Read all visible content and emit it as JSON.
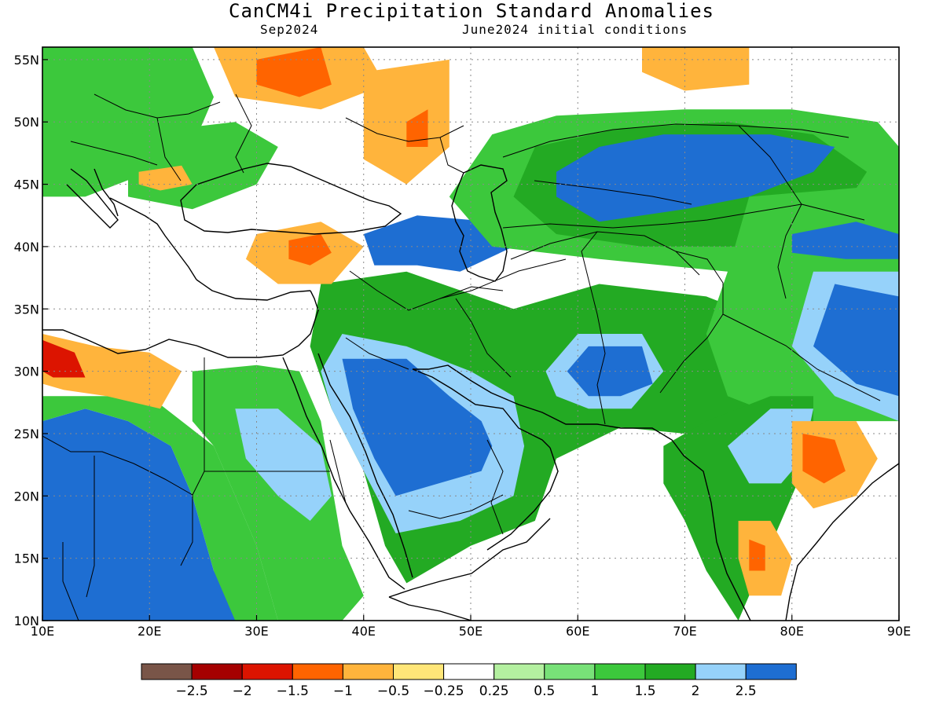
{
  "title": "CanCM4i Precipitation Standard Anomalies",
  "valid_month": "Sep2024",
  "init": "June2024 initial conditions",
  "map": {
    "lon_range": [
      10,
      90
    ],
    "lat_range": [
      10,
      56
    ],
    "lon_labels": [
      "10E",
      "20E",
      "30E",
      "40E",
      "50E",
      "60E",
      "70E",
      "80E",
      "90E"
    ],
    "lat_labels": [
      "10N",
      "15N",
      "20N",
      "25N",
      "30N",
      "35N",
      "40N",
      "45N",
      "50N",
      "55N"
    ]
  },
  "colorbar": {
    "colors": [
      "#795548",
      "#a50000",
      "#dc1400",
      "#ff6400",
      "#ffb43c",
      "#ffe678",
      "#ffffff",
      "#b4f0a0",
      "#78e178",
      "#3cc83c",
      "#23aa23",
      "#96d2fa",
      "#1e6ed2"
    ],
    "labels": [
      "−2.5",
      "−2",
      "−1.5",
      "−1",
      "−0.5",
      "−0.25",
      "0.25",
      "0.5",
      "1",
      "1.5",
      "2",
      "2.5"
    ]
  },
  "regions": [
    {
      "name": "east-africa-wet",
      "level": 12,
      "pts": [
        [
          10,
          26
        ],
        [
          14,
          27
        ],
        [
          18,
          26
        ],
        [
          22,
          24
        ],
        [
          24,
          20
        ],
        [
          26,
          14
        ],
        [
          28,
          11
        ],
        [
          28,
          10
        ],
        [
          10,
          10
        ],
        [
          10,
          13
        ]
      ]
    },
    {
      "name": "east-africa-moist",
      "level": 9,
      "pts": [
        [
          10,
          28
        ],
        [
          20,
          28
        ],
        [
          26,
          24
        ],
        [
          28,
          20
        ],
        [
          30,
          16
        ],
        [
          32,
          10
        ],
        [
          28,
          10
        ],
        [
          26,
          14
        ],
        [
          24,
          20
        ],
        [
          22,
          24
        ],
        [
          18,
          26
        ],
        [
          14,
          27
        ],
        [
          10,
          26
        ]
      ]
    },
    {
      "name": "sahara-green",
      "level": 9,
      "pts": [
        [
          24,
          30
        ],
        [
          30,
          30.5
        ],
        [
          34,
          30
        ],
        [
          36,
          26
        ],
        [
          37,
          21
        ],
        [
          38,
          16
        ],
        [
          40,
          12
        ],
        [
          38,
          10
        ],
        [
          32,
          10
        ],
        [
          30,
          16
        ],
        [
          28,
          20
        ],
        [
          26,
          24
        ],
        [
          24,
          26
        ]
      ]
    },
    {
      "name": "sudan-light",
      "level": 11,
      "pts": [
        [
          28,
          27
        ],
        [
          32,
          27
        ],
        [
          36,
          24
        ],
        [
          37,
          20
        ],
        [
          35,
          18
        ],
        [
          32,
          20
        ],
        [
          29,
          23
        ]
      ]
    },
    {
      "name": "libya-dry",
      "level": 4,
      "pts": [
        [
          10,
          33
        ],
        [
          15,
          32
        ],
        [
          20,
          31.5
        ],
        [
          23,
          30
        ],
        [
          21,
          27
        ],
        [
          16,
          28
        ],
        [
          12,
          28.5
        ],
        [
          10,
          29
        ]
      ]
    },
    {
      "name": "libya-core",
      "level": 2,
      "pts": [
        [
          10,
          32.5
        ],
        [
          13,
          31.5
        ],
        [
          14,
          29.5
        ],
        [
          11,
          29.5
        ],
        [
          10,
          30
        ]
      ]
    },
    {
      "name": "arabia-green",
      "level": 10,
      "pts": [
        [
          36,
          37
        ],
        [
          44,
          38
        ],
        [
          54,
          35
        ],
        [
          62,
          37
        ],
        [
          72,
          36
        ],
        [
          78,
          34
        ],
        [
          80,
          32
        ],
        [
          78,
          28
        ],
        [
          74,
          26
        ],
        [
          70,
          25
        ],
        [
          64,
          25.5
        ],
        [
          58,
          23
        ],
        [
          56,
          18
        ],
        [
          50,
          16
        ],
        [
          44,
          13
        ],
        [
          42,
          16
        ],
        [
          40,
          22
        ],
        [
          37,
          27
        ],
        [
          35,
          32
        ]
      ]
    },
    {
      "name": "arabia-light",
      "level": 11,
      "pts": [
        [
          38,
          33
        ],
        [
          44,
          32
        ],
        [
          50,
          30
        ],
        [
          54,
          28
        ],
        [
          55,
          24
        ],
        [
          54,
          20
        ],
        [
          49,
          18
        ],
        [
          43,
          17
        ],
        [
          40,
          22
        ],
        [
          37,
          27
        ],
        [
          36,
          30
        ]
      ]
    },
    {
      "name": "arabia-wet",
      "level": 12,
      "pts": [
        [
          38,
          31
        ],
        [
          44,
          31
        ],
        [
          48,
          28
        ],
        [
          51,
          26
        ],
        [
          52,
          24
        ],
        [
          51,
          22
        ],
        [
          47,
          21
        ],
        [
          43,
          20
        ],
        [
          41,
          23
        ],
        [
          39,
          27
        ]
      ]
    },
    {
      "name": "iran-light",
      "level": 11,
      "pts": [
        [
          60,
          33
        ],
        [
          66,
          33
        ],
        [
          68,
          30
        ],
        [
          65,
          27
        ],
        [
          61,
          27
        ],
        [
          58,
          28
        ],
        [
          57,
          30
        ]
      ]
    },
    {
      "name": "iran-wet",
      "level": 12,
      "pts": [
        [
          61,
          32
        ],
        [
          66,
          32
        ],
        [
          67,
          29
        ],
        [
          64,
          28
        ],
        [
          61,
          28
        ],
        [
          59,
          30
        ]
      ]
    },
    {
      "name": "caspian-wet",
      "level": 12,
      "pts": [
        [
          40,
          41
        ],
        [
          45,
          42.5
        ],
        [
          52,
          42
        ],
        [
          56,
          42
        ],
        [
          54,
          40
        ],
        [
          49,
          38
        ],
        [
          45,
          38.5
        ],
        [
          41,
          38.5
        ]
      ]
    },
    {
      "name": "kazakh-green",
      "level": 9,
      "pts": [
        [
          52,
          49
        ],
        [
          58,
          50.5
        ],
        [
          70,
          51
        ],
        [
          80,
          51
        ],
        [
          88,
          50
        ],
        [
          90,
          48
        ],
        [
          90,
          40
        ],
        [
          82,
          38
        ],
        [
          74,
          38
        ],
        [
          62,
          39
        ],
        [
          52,
          40
        ],
        [
          48,
          44
        ]
      ]
    },
    {
      "name": "kazakh-mid",
      "level": 10,
      "pts": [
        [
          56,
          48
        ],
        [
          64,
          49.5
        ],
        [
          74,
          50
        ],
        [
          82,
          49
        ],
        [
          87,
          46
        ],
        [
          84,
          42
        ],
        [
          76,
          40
        ],
        [
          66,
          40
        ],
        [
          58,
          41
        ],
        [
          54,
          44
        ]
      ]
    },
    {
      "name": "kazakh-wet",
      "level": 12,
      "pts": [
        [
          62,
          48
        ],
        [
          68,
          49
        ],
        [
          78,
          49
        ],
        [
          84,
          48
        ],
        [
          82,
          46
        ],
        [
          76,
          44
        ],
        [
          70,
          43
        ],
        [
          62,
          42
        ],
        [
          58,
          44
        ],
        [
          58,
          46
        ]
      ]
    },
    {
      "name": "china-green",
      "level": 9,
      "pts": [
        [
          76,
          44
        ],
        [
          90,
          45
        ],
        [
          90,
          26
        ],
        [
          80,
          26
        ],
        [
          74,
          28
        ],
        [
          72,
          33
        ],
        [
          74,
          38
        ]
      ]
    },
    {
      "name": "china-light",
      "level": 11,
      "pts": [
        [
          82,
          38
        ],
        [
          90,
          38
        ],
        [
          90,
          26
        ],
        [
          84,
          28
        ],
        [
          80,
          32
        ]
      ]
    },
    {
      "name": "china-wet",
      "level": 12,
      "pts": [
        [
          84,
          37
        ],
        [
          90,
          36
        ],
        [
          90,
          28
        ],
        [
          86,
          29
        ],
        [
          82,
          32
        ]
      ]
    },
    {
      "name": "tarim-wet",
      "level": 12,
      "pts": [
        [
          80,
          41
        ],
        [
          86,
          42
        ],
        [
          90,
          41
        ],
        [
          90,
          39
        ],
        [
          85,
          39
        ],
        [
          80,
          39.5
        ]
      ]
    },
    {
      "name": "india-green",
      "level": 10,
      "pts": [
        [
          68,
          24
        ],
        [
          72,
          26
        ],
        [
          78,
          28
        ],
        [
          82,
          28
        ],
        [
          82,
          24
        ],
        [
          80,
          20
        ],
        [
          77,
          14
        ],
        [
          75,
          10
        ],
        [
          72,
          14
        ],
        [
          70,
          18
        ],
        [
          68,
          21
        ]
      ]
    },
    {
      "name": "india-light",
      "level": 11,
      "pts": [
        [
          74,
          24
        ],
        [
          78,
          27
        ],
        [
          82,
          27
        ],
        [
          81,
          23
        ],
        [
          79,
          21
        ],
        [
          76,
          21
        ]
      ]
    },
    {
      "name": "orissa-dry",
      "level": 4,
      "pts": [
        [
          80,
          26
        ],
        [
          86,
          26
        ],
        [
          88,
          23
        ],
        [
          86,
          20
        ],
        [
          82,
          19
        ],
        [
          80,
          21
        ]
      ]
    },
    {
      "name": "orissa-core",
      "level": 3,
      "pts": [
        [
          81,
          25
        ],
        [
          84,
          24.5
        ],
        [
          85,
          22
        ],
        [
          83,
          21
        ],
        [
          81,
          22
        ]
      ]
    },
    {
      "name": "deccan-dry",
      "level": 4,
      "pts": [
        [
          75,
          18
        ],
        [
          78,
          18
        ],
        [
          80,
          15
        ],
        [
          79,
          12
        ],
        [
          76,
          12
        ],
        [
          75,
          15
        ]
      ]
    },
    {
      "name": "deccan-core",
      "level": 3,
      "pts": [
        [
          76,
          16.5
        ],
        [
          77.5,
          16
        ],
        [
          77.5,
          14
        ],
        [
          76,
          14
        ]
      ]
    },
    {
      "name": "europe-green",
      "level": 9,
      "pts": [
        [
          10,
          56
        ],
        [
          24,
          56
        ],
        [
          26,
          52
        ],
        [
          24,
          48
        ],
        [
          20,
          46
        ],
        [
          14,
          44
        ],
        [
          10,
          44
        ]
      ]
    },
    {
      "name": "balkans-green",
      "level": 9,
      "pts": [
        [
          18,
          49
        ],
        [
          28,
          50
        ],
        [
          32,
          48
        ],
        [
          30,
          45
        ],
        [
          24,
          43
        ],
        [
          18,
          44
        ]
      ]
    },
    {
      "name": "russia-dry",
      "level": 4,
      "pts": [
        [
          26,
          56
        ],
        [
          40,
          56
        ],
        [
          42,
          53
        ],
        [
          36,
          51
        ],
        [
          28,
          52
        ]
      ]
    },
    {
      "name": "russia-core",
      "level": 3,
      "pts": [
        [
          30,
          55
        ],
        [
          36,
          56
        ],
        [
          37,
          53
        ],
        [
          34,
          52
        ],
        [
          30,
          53
        ]
      ]
    },
    {
      "name": "volga-dry",
      "level": 4,
      "pts": [
        [
          40,
          54
        ],
        [
          48,
          55
        ],
        [
          48,
          48
        ],
        [
          44,
          45
        ],
        [
          40,
          47
        ]
      ]
    },
    {
      "name": "volga-core",
      "level": 3,
      "pts": [
        [
          44,
          50
        ],
        [
          46,
          51
        ],
        [
          46,
          48
        ],
        [
          44,
          48
        ]
      ]
    },
    {
      "name": "siberia-dry",
      "level": 4,
      "pts": [
        [
          66,
          56
        ],
        [
          76,
          56
        ],
        [
          76,
          53
        ],
        [
          70,
          52.5
        ],
        [
          66,
          54
        ]
      ]
    },
    {
      "name": "turkey-dry",
      "level": 4,
      "pts": [
        [
          30,
          41
        ],
        [
          36,
          42
        ],
        [
          40,
          40
        ],
        [
          37,
          37
        ],
        [
          32,
          37
        ],
        [
          29,
          39
        ]
      ]
    },
    {
      "name": "turkey-core",
      "level": 3,
      "pts": [
        [
          33,
          40.5
        ],
        [
          36,
          41
        ],
        [
          37,
          39.5
        ],
        [
          35,
          38.5
        ],
        [
          33,
          39
        ]
      ]
    },
    {
      "name": "hungary-dry",
      "level": 4,
      "pts": [
        [
          19,
          46
        ],
        [
          23,
          46.5
        ],
        [
          24,
          45
        ],
        [
          21,
          44.5
        ],
        [
          19,
          45
        ]
      ]
    }
  ]
}
